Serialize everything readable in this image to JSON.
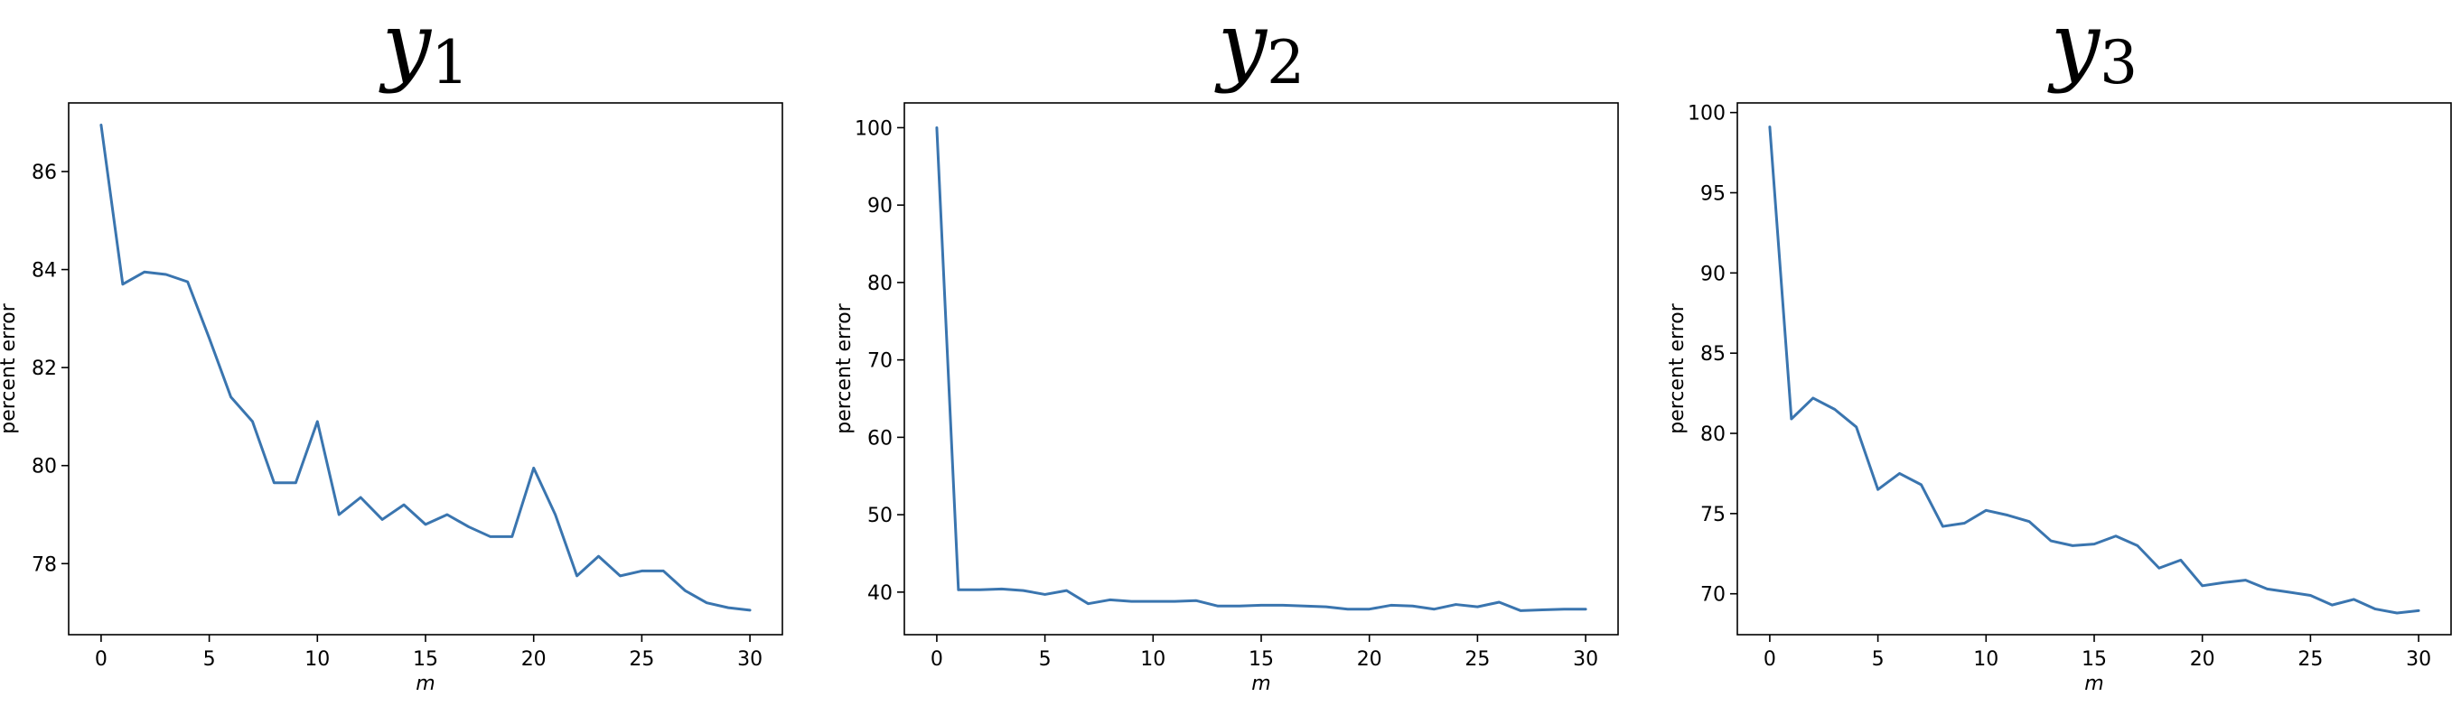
{
  "colors": {
    "series": "#3a75af",
    "axes": "#000000",
    "background": "#ffffff"
  },
  "chart_data": [
    {
      "type": "line",
      "title": "y",
      "title_subscript": "1",
      "xlabel": "m",
      "ylabel": "percent error",
      "xlim": [
        -1.5,
        31.5
      ],
      "ylim": [
        76.55,
        87.4
      ],
      "xticks": [
        0,
        5,
        10,
        15,
        20,
        25,
        30
      ],
      "yticks": [
        78,
        80,
        82,
        84,
        86
      ],
      "grid": false,
      "x": [
        0,
        1,
        2,
        3,
        4,
        5,
        6,
        7,
        8,
        9,
        10,
        11,
        12,
        13,
        14,
        15,
        16,
        17,
        18,
        19,
        20,
        21,
        22,
        23,
        24,
        25,
        26,
        27,
        28,
        29,
        30
      ],
      "series": [
        {
          "values": [
            86.95,
            83.7,
            83.95,
            83.9,
            83.75,
            82.6,
            81.4,
            80.9,
            79.65,
            79.65,
            80.9,
            79.0,
            79.35,
            78.9,
            79.2,
            78.8,
            79.0,
            78.75,
            78.55,
            78.55,
            79.95,
            79.0,
            77.75,
            78.15,
            77.75,
            77.85,
            77.85,
            77.45,
            77.2,
            77.1,
            77.05
          ]
        }
      ]
    },
    {
      "type": "line",
      "title": "y",
      "title_subscript": "2",
      "xlabel": "m",
      "ylabel": "percent error",
      "xlim": [
        -1.5,
        31.5
      ],
      "ylim": [
        34.5,
        103.2
      ],
      "xticks": [
        0,
        5,
        10,
        15,
        20,
        25,
        30
      ],
      "yticks": [
        40,
        50,
        60,
        70,
        80,
        90,
        100
      ],
      "grid": false,
      "x": [
        0,
        1,
        2,
        3,
        4,
        5,
        6,
        7,
        8,
        9,
        10,
        11,
        12,
        13,
        14,
        15,
        16,
        17,
        18,
        19,
        20,
        21,
        22,
        23,
        24,
        25,
        26,
        27,
        28,
        29,
        30
      ],
      "series": [
        {
          "values": [
            100.0,
            40.3,
            40.3,
            40.4,
            40.2,
            39.7,
            40.2,
            38.5,
            39.0,
            38.8,
            38.8,
            38.8,
            38.9,
            38.2,
            38.2,
            38.3,
            38.3,
            38.2,
            38.1,
            37.8,
            37.8,
            38.3,
            38.2,
            37.8,
            38.4,
            38.1,
            38.7,
            37.6,
            37.7,
            37.8,
            37.8
          ]
        }
      ]
    },
    {
      "type": "line",
      "title": "y",
      "title_subscript": "3",
      "xlabel": "m",
      "ylabel": "percent error",
      "xlim": [
        -1.5,
        31.5
      ],
      "ylim": [
        67.45,
        100.6
      ],
      "xticks": [
        0,
        5,
        10,
        15,
        20,
        25,
        30
      ],
      "yticks": [
        70,
        75,
        80,
        85,
        90,
        95,
        100
      ],
      "grid": false,
      "x": [
        0,
        1,
        2,
        3,
        4,
        5,
        6,
        7,
        8,
        9,
        10,
        11,
        12,
        13,
        14,
        15,
        16,
        17,
        18,
        19,
        20,
        21,
        22,
        23,
        24,
        25,
        26,
        27,
        28,
        29,
        30
      ],
      "series": [
        {
          "values": [
            99.1,
            80.9,
            82.2,
            81.5,
            80.4,
            76.5,
            77.5,
            76.8,
            74.2,
            74.4,
            75.2,
            74.9,
            74.5,
            73.3,
            73.0,
            73.1,
            73.6,
            73.0,
            71.6,
            72.1,
            70.5,
            70.7,
            70.85,
            70.3,
            70.1,
            69.9,
            69.3,
            69.65,
            69.05,
            68.8,
            68.95
          ]
        }
      ]
    }
  ]
}
